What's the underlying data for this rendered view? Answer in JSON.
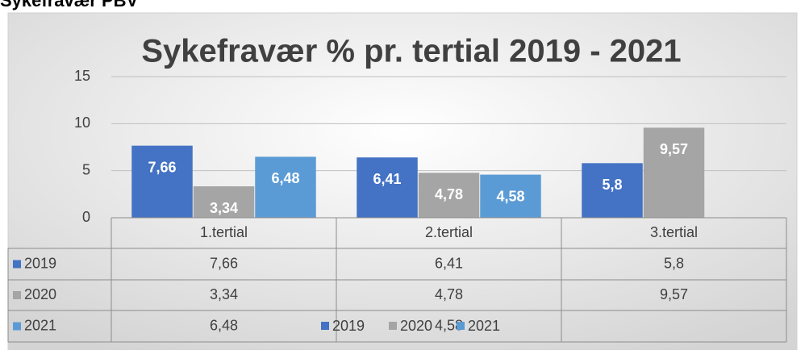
{
  "heading": "Sykefravær PBV",
  "chart_data": {
    "type": "bar",
    "title": "Sykefravær % pr. tertial 2019 - 2021",
    "categories": [
      "1.tertial",
      "2.tertial",
      "3.tertial"
    ],
    "series": [
      {
        "name": "2019",
        "color": "#4472c4",
        "values": [
          7.66,
          6.41,
          5.8
        ],
        "value_labels": [
          "7,66",
          "6,41",
          "5,8"
        ]
      },
      {
        "name": "2020",
        "color": "#a5a5a5",
        "values": [
          3.34,
          4.78,
          9.57
        ],
        "value_labels": [
          "3,34",
          "4,78",
          "9,57"
        ]
      },
      {
        "name": "2021",
        "color": "#5b9bd5",
        "values": [
          6.48,
          4.58,
          null
        ],
        "value_labels": [
          "6,48",
          "4,58",
          null
        ]
      }
    ],
    "ylim": [
      0,
      15
    ],
    "yticks": [
      0,
      5,
      10,
      15
    ],
    "grid": true,
    "legend": "bottom",
    "data_table": true
  }
}
